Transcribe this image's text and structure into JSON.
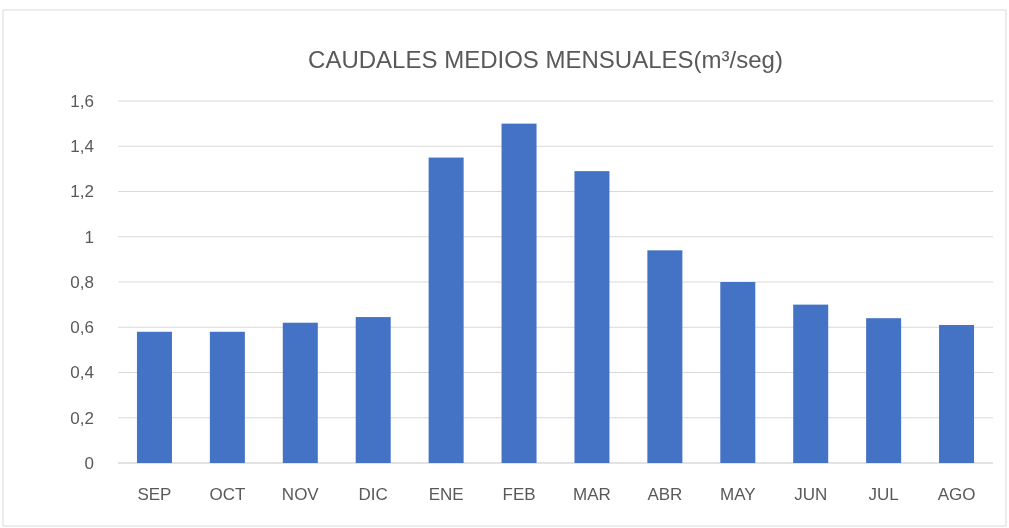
{
  "chart_data": {
    "type": "bar",
    "title": "CAUDALES MEDIOS MENSUALES(m³/seg)",
    "categories": [
      "SEP",
      "OCT",
      "NOV",
      "DIC",
      "ENE",
      "FEB",
      "MAR",
      "ABR",
      "MAY",
      "JUN",
      "JUL",
      "AGO"
    ],
    "values": [
      0.58,
      0.58,
      0.62,
      0.645,
      1.35,
      1.5,
      1.29,
      0.94,
      0.8,
      0.7,
      0.64,
      0.61
    ],
    "color": "#4472c4",
    "ylim": [
      0,
      1.6
    ],
    "yticks": [
      {
        "value": 0,
        "label": "0"
      },
      {
        "value": 0.2,
        "label": "0,2"
      },
      {
        "value": 0.4,
        "label": "0,4"
      },
      {
        "value": 0.6,
        "label": "0,6"
      },
      {
        "value": 0.8,
        "label": "0,8"
      },
      {
        "value": 1,
        "label": "1"
      },
      {
        "value": 1.2,
        "label": "1,2"
      },
      {
        "value": 1.4,
        "label": "1,4"
      },
      {
        "value": 1.6,
        "label": "1,6"
      }
    ],
    "grid": true
  }
}
